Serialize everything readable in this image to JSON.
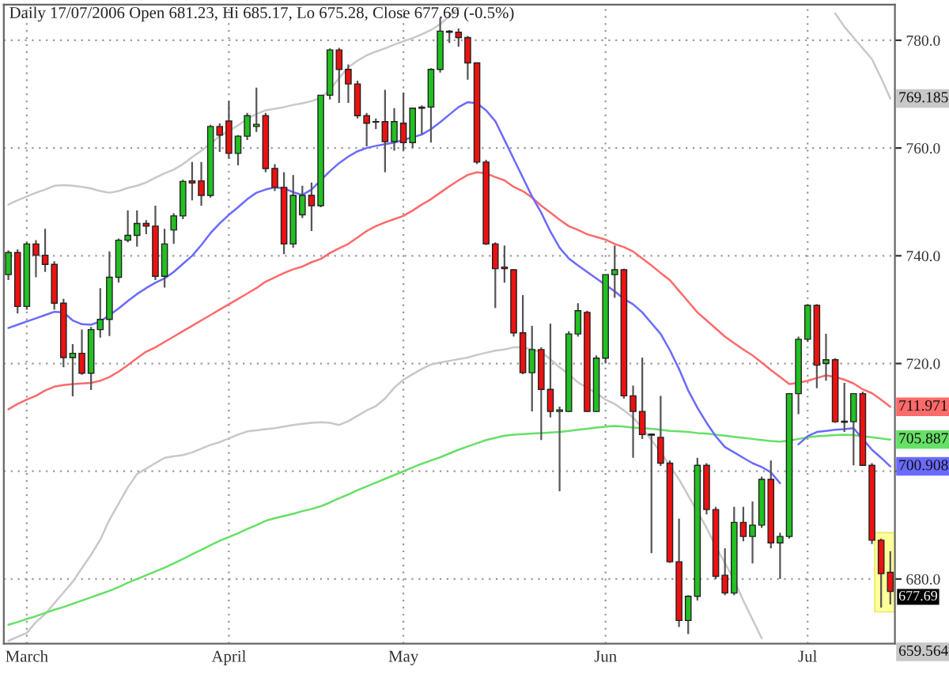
{
  "chart_data": {
    "type": "candlestick",
    "title": "Daily 17/07/2006 Open 681.23, Hi 685.17, Lo 675.28, Close 677.69 (-0.5%)",
    "categories": [
      null,
      null,
      "March",
      null,
      null,
      null,
      null,
      null,
      null,
      null,
      null,
      null,
      null,
      null,
      null,
      null,
      null,
      null,
      null,
      null,
      null,
      null,
      null,
      null,
      "April",
      null,
      null,
      null,
      null,
      null,
      null,
      null,
      null,
      null,
      null,
      null,
      null,
      null,
      null,
      null,
      null,
      null,
      null,
      "May",
      null,
      null,
      null,
      null,
      null,
      null,
      null,
      null,
      null,
      null,
      null,
      null,
      null,
      null,
      null,
      null,
      null,
      null,
      null,
      null,
      null,
      "Jun",
      null,
      null,
      null,
      null,
      null,
      null,
      null,
      null,
      null,
      null,
      null,
      null,
      null,
      null,
      null,
      null,
      null,
      null,
      null,
      null,
      null,
      "Jul",
      null,
      null,
      null,
      null,
      null,
      null,
      null,
      null,
      null
    ],
    "ohlc": [
      [
        736.5,
        741,
        735.5,
        740.6
      ],
      [
        740.6,
        741.2,
        729.3,
        730.6
      ],
      [
        730.6,
        742.5,
        730,
        742.2
      ],
      [
        742.2,
        742.9,
        736,
        740.1
      ],
      [
        740.1,
        745,
        737,
        738.4
      ],
      [
        738.4,
        739,
        730,
        731.2
      ],
      [
        731.2,
        732,
        719.3,
        721.1
      ],
      [
        721.1,
        723.6,
        713.9,
        721.9
      ],
      [
        721.9,
        726.3,
        717.9,
        718.2
      ],
      [
        718.2,
        726.8,
        715.1,
        726.3
      ],
      [
        726.3,
        734,
        724.8,
        728.2
      ],
      [
        728.2,
        740.8,
        725.1,
        736
      ],
      [
        736,
        743.2,
        735,
        742.9
      ],
      [
        742.9,
        748.4,
        742.5,
        743.8
      ],
      [
        743.8,
        748.4,
        741.7,
        746
      ],
      [
        746,
        746.6,
        744,
        745.5
      ],
      [
        745.5,
        749.3,
        735.5,
        736.2
      ],
      [
        736.2,
        745,
        734.1,
        742.2
      ],
      [
        744.8,
        747.9,
        742.2,
        747.4
      ],
      [
        747.4,
        754.1,
        746.8,
        753.8
      ],
      [
        753.9,
        757.4,
        750.3,
        753.5
      ],
      [
        753.9,
        757.4,
        749.3,
        751.2
      ],
      [
        751.2,
        764.3,
        750.8,
        764
      ],
      [
        764,
        764.6,
        759.3,
        762.4
      ],
      [
        765,
        768.7,
        758,
        759
      ],
      [
        759,
        762.4,
        756.8,
        762.2
      ],
      [
        762.2,
        766.5,
        761.5,
        766
      ],
      [
        764,
        771.2,
        763,
        764.4
      ],
      [
        766,
        766.5,
        755.5,
        756.2
      ],
      [
        756.2,
        757,
        752,
        752.7
      ],
      [
        752.7,
        755.5,
        740.3,
        742.2
      ],
      [
        742.2,
        755,
        741.5,
        751.2
      ],
      [
        747.6,
        753,
        747,
        751.2
      ],
      [
        751.2,
        753.6,
        744.6,
        749.3
      ],
      [
        749.3,
        769.8,
        749,
        769.8
      ],
      [
        769.8,
        778.5,
        769,
        778.2
      ],
      [
        778.2,
        778.6,
        768.4,
        774.6
      ],
      [
        774.6,
        775.5,
        768.4,
        771.9
      ],
      [
        771.9,
        772.5,
        765.5,
        766
      ],
      [
        766,
        766.5,
        760.3,
        764.6
      ],
      [
        764.9,
        765.5,
        763.5,
        764.8
      ],
      [
        764.9,
        770.8,
        755.5,
        761.2
      ],
      [
        761.2,
        767.4,
        759.5,
        764.9
      ],
      [
        764.6,
        770.3,
        759.5,
        761
      ],
      [
        761,
        767.4,
        760,
        767.4
      ],
      [
        767.4,
        767.9,
        762.5,
        767.6
      ],
      [
        767.6,
        774.8,
        761,
        774.6
      ],
      [
        774.6,
        784.1,
        774,
        781.7
      ],
      [
        781.7,
        781.9,
        779.5,
        781.5
      ],
      [
        781.5,
        782.2,
        778.8,
        780.5
      ],
      [
        780.5,
        780.8,
        772.7,
        775.8
      ],
      [
        775.8,
        775.8,
        757,
        757.4
      ],
      [
        757.4,
        757.8,
        742,
        742.2
      ],
      [
        742.2,
        742.5,
        730.3,
        737.6
      ],
      [
        737.9,
        741.9,
        735,
        737.6
      ],
      [
        737.4,
        737.5,
        725,
        725.7
      ],
      [
        725.7,
        732.7,
        718,
        718.3
      ],
      [
        718.3,
        727,
        711.1,
        722.6
      ],
      [
        722.6,
        723,
        705.8,
        715.2
      ],
      [
        715.2,
        727.4,
        710,
        711.1
      ],
      [
        711.1,
        712,
        696.3,
        711.4
      ],
      [
        711.1,
        726,
        711,
        725.5
      ],
      [
        725.5,
        731.2,
        725,
        729.8
      ],
      [
        729.5,
        729.8,
        711,
        711.1
      ],
      [
        711.1,
        721.5,
        711,
        721
      ],
      [
        721,
        736.5,
        720,
        736.5
      ],
      [
        736.5,
        741.9,
        732.2,
        737.4
      ],
      [
        737.4,
        737.6,
        713.5,
        714
      ],
      [
        714,
        715.9,
        702.5,
        711.1
      ],
      [
        711.1,
        721.1,
        706,
        706.8
      ],
      [
        706.9,
        707,
        684.8,
        706.7
      ],
      [
        706.3,
        714,
        701,
        701.5
      ],
      [
        701.5,
        702,
        683,
        683.2
      ],
      [
        683.2,
        691.2,
        671.1,
        672.3
      ],
      [
        672.3,
        677,
        669.8,
        676.8
      ],
      [
        676.8,
        702.5,
        676,
        701.1
      ],
      [
        701.1,
        701.5,
        692,
        692.9
      ],
      [
        692.9,
        693.4,
        680,
        680.5
      ],
      [
        680.7,
        685.7,
        677,
        677.4
      ],
      [
        677.4,
        693.4,
        677,
        690.5
      ],
      [
        690.5,
        693.4,
        687,
        687.9
      ],
      [
        687.9,
        694.4,
        682.9,
        690
      ],
      [
        690,
        699,
        689.5,
        698.5
      ],
      [
        698.5,
        702,
        685.7,
        686.7
      ],
      [
        686.7,
        688.6,
        680,
        687.9
      ],
      [
        687.9,
        714.5,
        687.5,
        714.4
      ],
      [
        714.4,
        725,
        710.6,
        724.5
      ],
      [
        724.5,
        731,
        724,
        730.8
      ],
      [
        730.8,
        731,
        715.4,
        719.7
      ],
      [
        720,
        725.5,
        716.8,
        720.7
      ],
      [
        720.7,
        721,
        709,
        709.2
      ],
      [
        709.3,
        716.4,
        707.3,
        709.1
      ],
      [
        709.2,
        714.5,
        701.1,
        714.4
      ],
      [
        714.4,
        714.8,
        701,
        701.1
      ],
      [
        701.1,
        701.5,
        686.5,
        687.2
      ],
      [
        687.2,
        687.5,
        674.7,
        681
      ],
      [
        681.23,
        685.17,
        675.28,
        677.69
      ]
    ],
    "colors": [
      "#22c022",
      "#ee1111",
      "#22c022",
      "#ee1111",
      "#ee1111",
      "#ee1111",
      "#ee1111",
      "#22c022",
      "#ee1111",
      "#22c022",
      "#22c022",
      "#22c022",
      "#22c022",
      "#22c022",
      "#22c022",
      "#ee1111",
      "#ee1111",
      "#22c022",
      "#22c022",
      "#22c022",
      "#ee1111",
      "#ee1111",
      "#22c022",
      "#ee1111",
      "#ee1111",
      "#22c022",
      "#22c022",
      "#22c022",
      "#ee1111",
      "#ee1111",
      "#ee1111",
      "#22c022",
      "#22c022",
      "#ee1111",
      "#22c022",
      "#22c022",
      "#ee1111",
      "#ee1111",
      "#ee1111",
      "#ee1111",
      "#ee1111",
      "#ee1111",
      "#22c022",
      "#ee1111",
      "#22c022",
      "#22c022",
      "#22c022",
      "#22c022",
      "#ee1111",
      "#ee1111",
      "#ee1111",
      "#ee1111",
      "#ee1111",
      "#ee1111",
      "#ee1111",
      "#ee1111",
      "#ee1111",
      "#22c022",
      "#ee1111",
      "#ee1111",
      "#22c022",
      "#22c022",
      "#22c022",
      "#ee1111",
      "#22c022",
      "#22c022",
      "#22c022",
      "#ee1111",
      "#ee1111",
      "#ee1111",
      "#ee1111",
      "#ee1111",
      "#ee1111",
      "#ee1111",
      "#22c022",
      "#22c022",
      "#ee1111",
      "#ee1111",
      "#ee1111",
      "#22c022",
      "#ee1111",
      "#22c022",
      "#22c022",
      "#ee1111",
      "#22c022",
      "#22c022",
      "#22c022",
      "#22c022",
      "#ee1111",
      "#22c022",
      "#ee1111",
      "#ee1111",
      "#22c022",
      "#ee1111",
      "#ee1111",
      "#ee1111",
      "#ee1111"
    ],
    "series": [
      {
        "type": "line",
        "color": "#c8c8c8",
        "values": [
          749.5,
          750.3,
          751,
          751.7,
          752.3,
          753,
          753.1,
          753,
          752.8,
          752.5,
          752,
          751.7,
          752,
          752.6,
          753,
          753.6,
          754.5,
          755.3,
          756,
          757,
          758.3,
          759.5,
          760.8,
          762.2,
          763.2,
          764.2,
          765.4,
          766.3,
          767,
          767.3,
          767.6,
          768,
          768.3,
          768.7,
          769.3,
          770.8,
          773,
          775,
          776.2,
          777.2,
          777.9,
          778.5,
          779.2,
          779.8,
          780.4,
          781.1,
          781.9,
          783,
          784.5,
          786,
          null,
          null,
          null,
          null,
          null,
          null,
          null,
          null,
          null,
          null,
          null,
          null,
          null,
          null,
          null,
          null,
          null,
          null,
          null,
          null,
          null,
          null,
          null,
          null,
          null,
          null,
          null,
          null,
          null,
          null,
          null,
          null,
          null,
          null,
          null,
          null,
          null,
          null,
          null,
          null,
          785,
          782.5,
          780.5,
          778.5,
          776.5,
          773,
          769.185
        ],
        "value_labels": [
          null,
          null,
          null,
          null,
          null,
          null,
          null,
          null,
          null,
          null,
          null,
          null,
          null,
          null,
          null,
          null,
          null,
          null,
          null,
          null,
          null,
          null,
          null,
          null,
          null,
          null,
          null,
          null,
          null,
          null,
          null,
          null,
          null,
          null,
          null,
          null,
          null,
          null,
          null,
          null,
          null,
          null,
          null,
          null,
          null,
          null,
          null,
          null,
          null,
          null,
          null,
          null,
          null,
          null,
          null,
          null,
          null,
          null,
          null,
          null,
          null,
          null,
          null,
          null,
          null,
          null,
          null,
          null,
          null,
          null,
          null,
          null,
          null,
          null,
          null,
          null,
          null,
          null,
          null,
          null,
          null,
          null,
          null,
          null,
          null,
          null,
          null,
          null,
          null,
          null,
          null,
          null,
          null,
          null,
          null,
          null,
          "769.185"
        ]
      },
      {
        "type": "line",
        "color": "#c8c8c8",
        "values": [
          668.5,
          669.3,
          670,
          672,
          673.5,
          675.5,
          677.5,
          679.5,
          682,
          684.5,
          687.3,
          691,
          694,
          697,
          699.5,
          700.5,
          701.5,
          702.5,
          702.8,
          703,
          703.5,
          704.2,
          704.9,
          705.4,
          706.1,
          706.8,
          707.4,
          707.6,
          707.8,
          708,
          708.3,
          708.6,
          708.8,
          709,
          709.1,
          709,
          708.6,
          709.3,
          710.3,
          711.3,
          712.1,
          713.5,
          715.5,
          717,
          718,
          719,
          719.8,
          720.2,
          720.5,
          720.8,
          721.1,
          721.6,
          722,
          722.4,
          722.6,
          723,
          723,
          722.6,
          722.1,
          720.8,
          719.3,
          718,
          716.5,
          715.5,
          714.5,
          713.3,
          712.5,
          711.3,
          710,
          708,
          705.8,
          703.5,
          701,
          698.5,
          695.5,
          692.5,
          689.5,
          686,
          683,
          679.8,
          676,
          672.5,
          669,
          null,
          null,
          null,
          null,
          null,
          null,
          null,
          null,
          null,
          null,
          null,
          null,
          null,
          null
        ]
      },
      {
        "type": "line",
        "color": "#66e066",
        "values": [
          671.5,
          672,
          672.6,
          673.1,
          673.7,
          674.3,
          674.8,
          675.4,
          676,
          676.6,
          677.2,
          677.8,
          678.5,
          679.3,
          680,
          680.7,
          681.4,
          682.1,
          682.9,
          683.7,
          684.6,
          685.4,
          686.3,
          687.1,
          687.8,
          688.5,
          689.3,
          690,
          690.8,
          691.3,
          691.7,
          692.1,
          692.6,
          693,
          693.5,
          694.2,
          695,
          695.7,
          696.5,
          697.2,
          697.9,
          698.6,
          699.3,
          700,
          700.7,
          701.4,
          702,
          702.6,
          703.3,
          704,
          704.6,
          705.2,
          705.8,
          706.2,
          706.6,
          706.8,
          706.9,
          707,
          707.1,
          707.2,
          707.3,
          707.5,
          707.7,
          707.9,
          708.1,
          708.3,
          708.4,
          708.3,
          708.1,
          708,
          707.9,
          707.7,
          707.5,
          707.4,
          707.3,
          707.1,
          707,
          706.8,
          706.6,
          706.4,
          706.2,
          706,
          705.8,
          705.6,
          705.5,
          705.7,
          706,
          706.3,
          706.5,
          706.6,
          706.7,
          706.8,
          706.7,
          706.5,
          706.3,
          706.1,
          705.887
        ],
        "value_labels": [
          null,
          null,
          null,
          null,
          null,
          null,
          null,
          null,
          null,
          null,
          null,
          null,
          null,
          null,
          null,
          null,
          null,
          null,
          null,
          null,
          null,
          null,
          null,
          null,
          null,
          null,
          null,
          null,
          null,
          null,
          null,
          null,
          null,
          null,
          null,
          null,
          null,
          null,
          null,
          null,
          null,
          null,
          null,
          null,
          null,
          null,
          null,
          null,
          null,
          null,
          null,
          null,
          null,
          null,
          null,
          null,
          null,
          null,
          null,
          null,
          null,
          null,
          null,
          null,
          null,
          null,
          null,
          null,
          null,
          null,
          null,
          null,
          null,
          null,
          null,
          null,
          null,
          null,
          null,
          null,
          null,
          null,
          null,
          null,
          null,
          null,
          null,
          null,
          null,
          null,
          null,
          null,
          null,
          null,
          null,
          null,
          "705.887"
        ]
      },
      {
        "type": "line",
        "color": "#ff6a6a",
        "values": [
          711.5,
          712.5,
          713.3,
          714,
          715,
          715.7,
          716,
          716.2,
          716.3,
          716.4,
          716.8,
          717.5,
          718.5,
          719.7,
          721,
          722.2,
          723,
          724,
          725,
          726,
          727,
          728,
          729,
          730,
          731,
          732,
          733,
          734,
          735.2,
          736,
          736.8,
          737.5,
          738,
          738.8,
          739.4,
          740.5,
          741.4,
          742.2,
          743.4,
          744.6,
          745.5,
          746.2,
          746.8,
          747.4,
          748.4,
          749.5,
          750.5,
          751.7,
          752.9,
          754,
          755,
          755.5,
          755.3,
          754.6,
          754,
          752.8,
          752,
          750.8,
          749.3,
          748,
          746.7,
          745.5,
          744.8,
          744,
          743.5,
          743,
          742.2,
          741.6,
          740.8,
          739.5,
          738.2,
          736.8,
          735.5,
          733.5,
          731.5,
          729.5,
          728,
          726.5,
          725,
          723.8,
          722.6,
          721.5,
          720.2,
          718.8,
          717.5,
          716.2,
          716.4,
          716.8,
          717.3,
          717.8,
          717.5,
          717,
          716.3,
          715.2,
          714.5,
          713.3,
          711.971
        ],
        "value_labels": [
          null,
          null,
          null,
          null,
          null,
          null,
          null,
          null,
          null,
          null,
          null,
          null,
          null,
          null,
          null,
          null,
          null,
          null,
          null,
          null,
          null,
          null,
          null,
          null,
          null,
          null,
          null,
          null,
          null,
          null,
          null,
          null,
          null,
          null,
          null,
          null,
          null,
          null,
          null,
          null,
          null,
          null,
          null,
          null,
          null,
          null,
          null,
          null,
          null,
          null,
          null,
          null,
          null,
          null,
          null,
          null,
          null,
          null,
          null,
          null,
          null,
          null,
          null,
          null,
          null,
          null,
          null,
          null,
          null,
          null,
          null,
          null,
          null,
          null,
          null,
          null,
          null,
          null,
          null,
          null,
          null,
          null,
          null,
          null,
          null,
          null,
          null,
          null,
          null,
          null,
          null,
          null,
          null,
          null,
          null,
          null,
          "711.971"
        ]
      },
      {
        "type": "line",
        "color": "#6a6aff",
        "values": [
          726.6,
          727.2,
          727.8,
          728.4,
          729,
          729.6,
          729.5,
          728,
          727.3,
          727.2,
          727.8,
          729,
          730.2,
          731.6,
          732.9,
          734,
          735,
          735.8,
          737,
          738.5,
          740,
          742,
          744.2,
          746,
          747.6,
          749,
          750.5,
          751.7,
          752.3,
          752.7,
          752.5,
          751.8,
          751.3,
          752.3,
          754,
          755.7,
          757.2,
          758.4,
          759.4,
          760,
          760.4,
          760.7,
          761,
          761.5,
          762,
          762.5,
          763.5,
          764.8,
          766.2,
          767.6,
          768.5,
          768.3,
          767,
          765,
          761.5,
          758,
          754.5,
          751,
          748,
          744.5,
          741.5,
          739.5,
          738.2,
          737,
          735.8,
          734.6,
          733.4,
          732,
          731,
          729.5,
          727.5,
          725.5,
          722.5,
          719,
          715,
          711.8,
          709,
          706.5,
          704.5,
          703.5,
          702.5,
          701.5,
          700.8,
          699.8,
          697.8,
          null,
          705,
          706.5,
          707.3,
          707.5,
          707.7,
          707.8,
          708,
          706,
          704,
          702.5,
          700.908
        ],
        "value_labels": [
          null,
          null,
          null,
          null,
          null,
          null,
          null,
          null,
          null,
          null,
          null,
          null,
          null,
          null,
          null,
          null,
          null,
          null,
          null,
          null,
          null,
          null,
          null,
          null,
          null,
          null,
          null,
          null,
          null,
          null,
          null,
          null,
          null,
          null,
          null,
          null,
          null,
          null,
          null,
          null,
          null,
          null,
          null,
          null,
          null,
          null,
          null,
          null,
          null,
          null,
          null,
          null,
          null,
          null,
          null,
          null,
          null,
          null,
          null,
          null,
          null,
          null,
          null,
          null,
          null,
          null,
          null,
          null,
          null,
          null,
          null,
          null,
          null,
          null,
          null,
          null,
          null,
          null,
          null,
          null,
          null,
          null,
          null,
          null,
          null,
          null,
          null,
          null,
          null,
          null,
          null,
          null,
          null,
          null,
          null,
          null,
          "700.908"
        ]
      }
    ],
    "ylim": [
      668,
      786.6
    ],
    "yticks": [
      {
        "value": 680,
        "label": "680.0"
      },
      {
        "value": 700,
        "label": null
      },
      {
        "value": 720,
        "label": "720.0"
      },
      {
        "value": 740,
        "label": "740.0"
      },
      {
        "value": 760,
        "label": "760.0"
      },
      {
        "value": 780,
        "label": "780.0"
      }
    ],
    "grid": true,
    "value_labels": [
      null,
      null,
      null,
      null,
      null,
      null,
      null,
      null,
      null,
      null,
      null,
      null,
      null,
      null,
      null,
      null,
      null,
      null,
      null,
      null,
      null,
      null,
      null,
      null,
      null,
      null,
      null,
      null,
      null,
      null,
      null,
      null,
      null,
      null,
      null,
      null,
      null,
      null,
      null,
      null,
      null,
      null,
      null,
      null,
      null,
      null,
      null,
      null,
      null,
      null,
      null,
      null,
      null,
      null,
      null,
      null,
      null,
      null,
      null,
      null,
      null,
      null,
      null,
      null,
      null,
      null,
      null,
      null,
      null,
      null,
      null,
      null,
      null,
      null,
      null,
      null,
      null,
      null,
      null,
      null,
      null,
      null,
      null,
      null,
      null,
      null,
      null,
      null,
      null,
      null,
      null,
      null,
      null,
      null,
      null,
      null,
      "677.69"
    ],
    "annotations": [
      "659.564"
    ]
  }
}
